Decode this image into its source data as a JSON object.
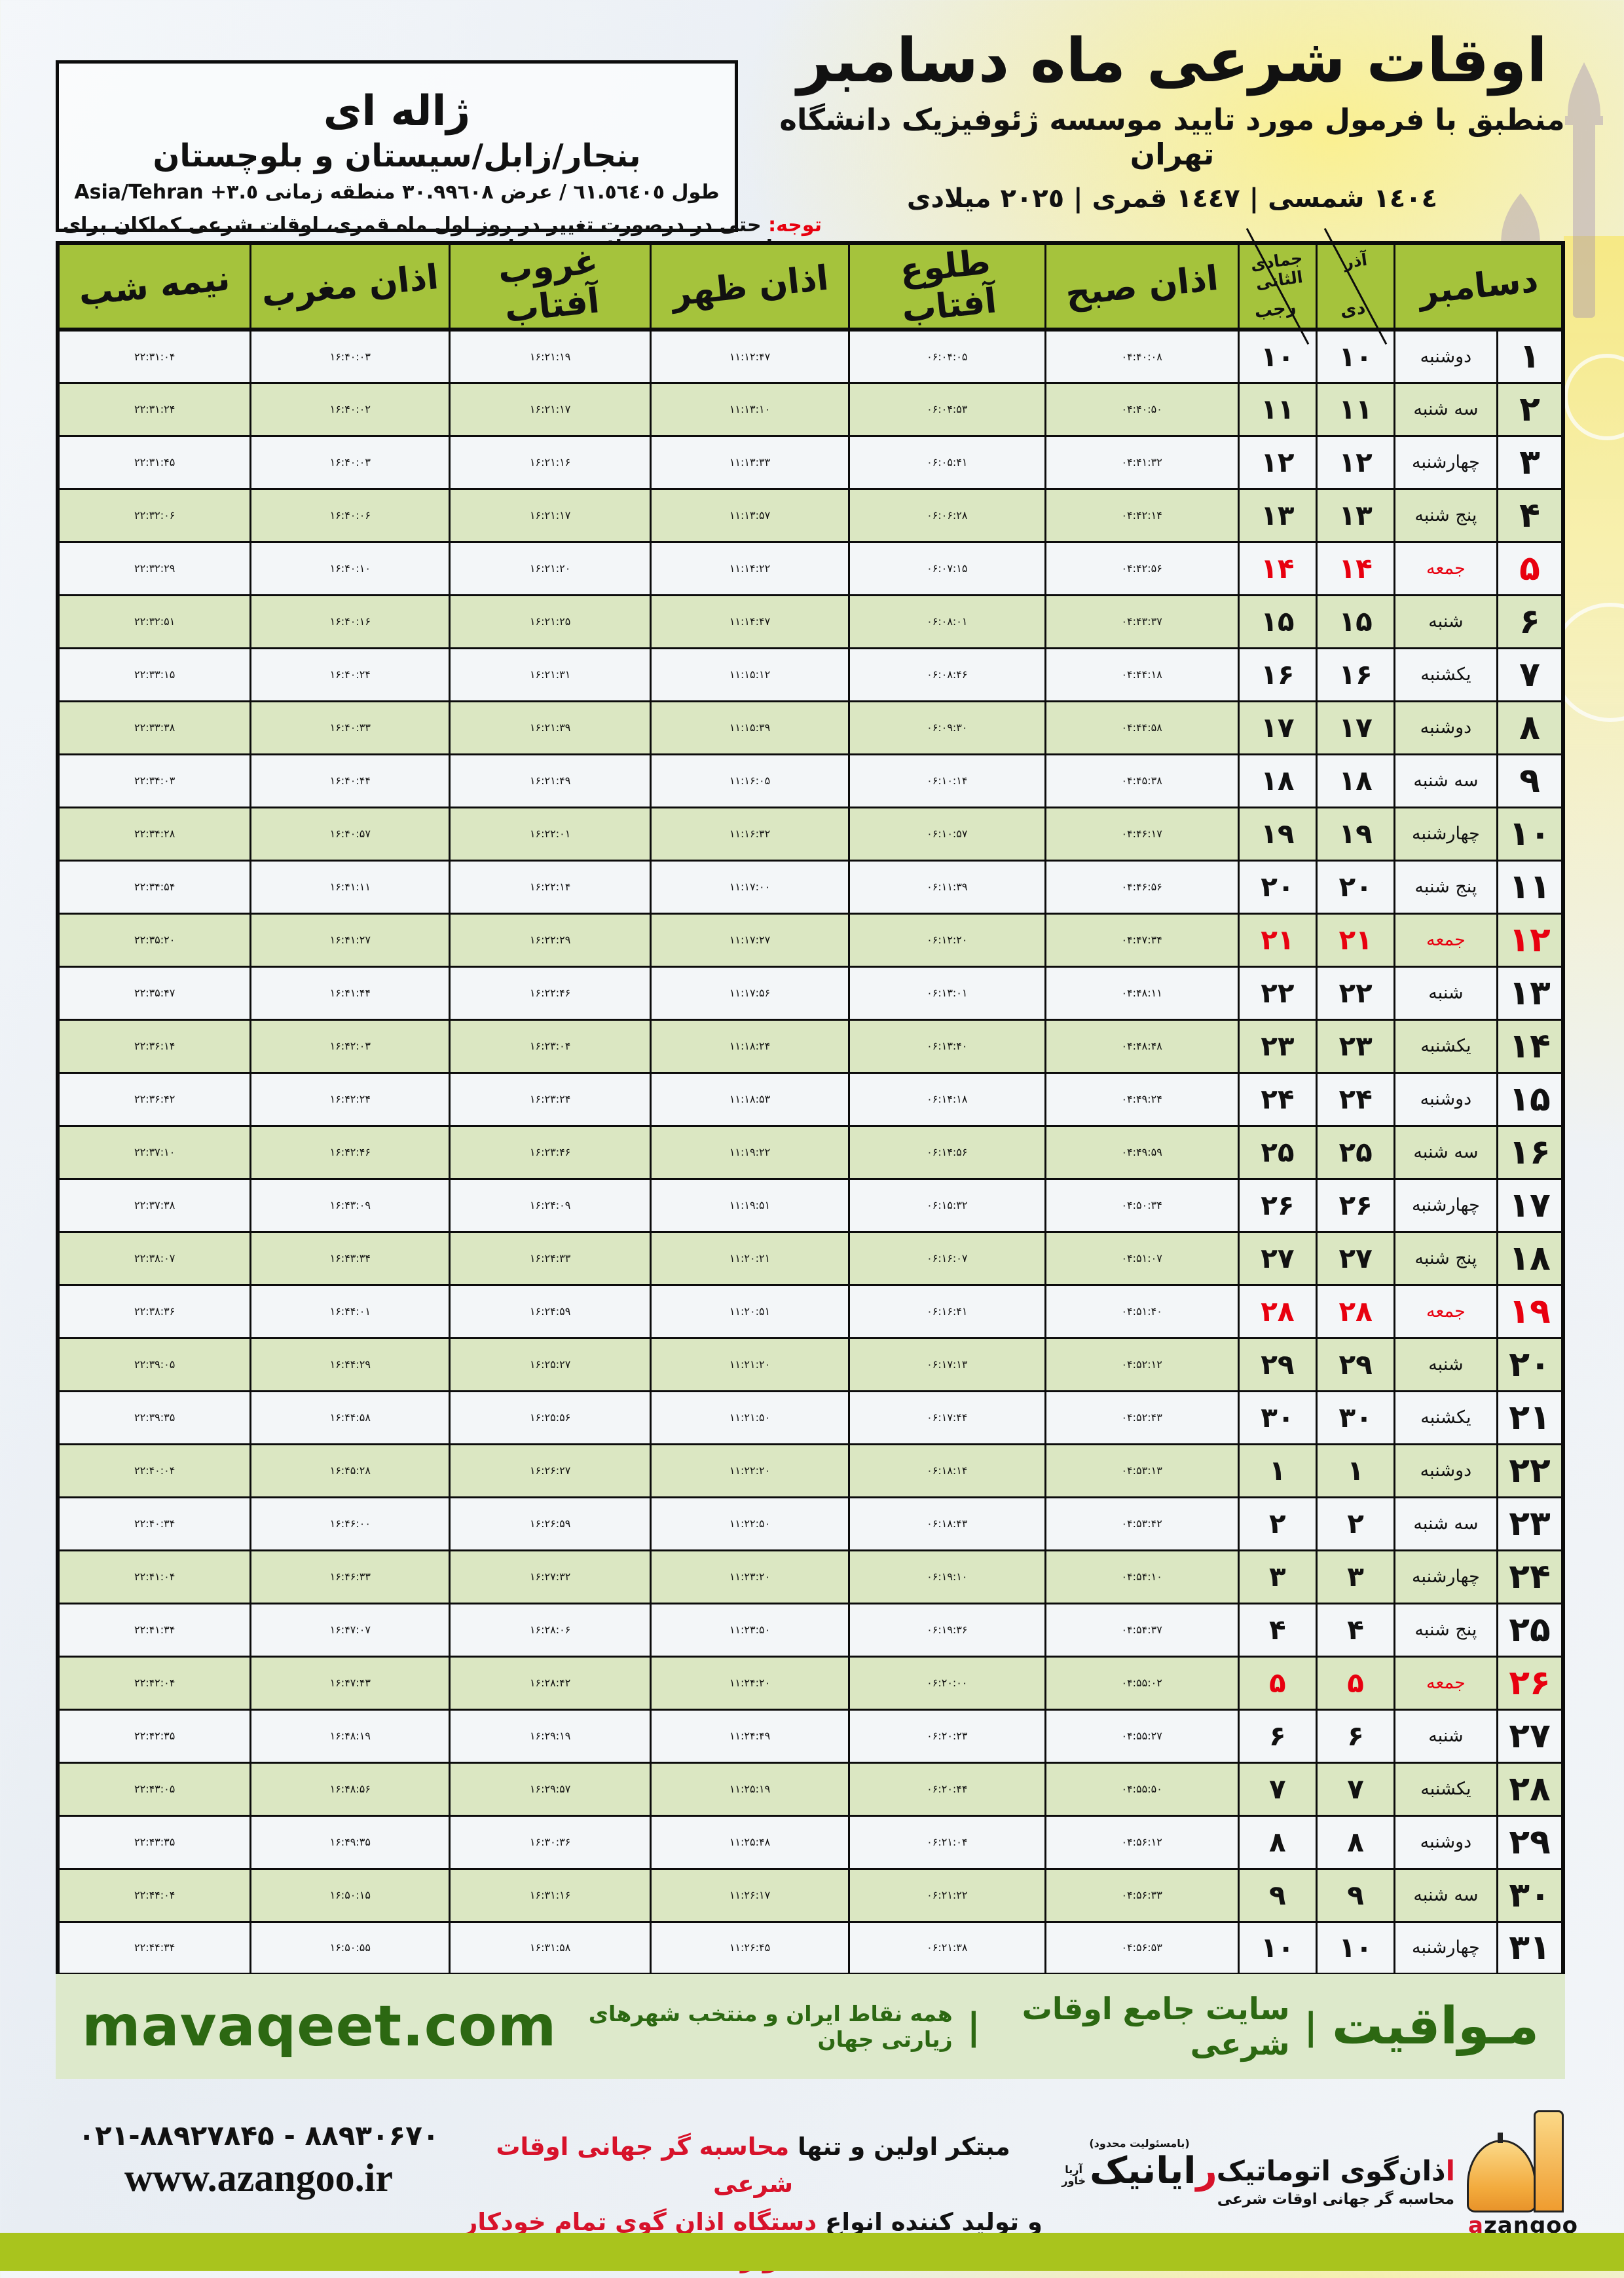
{
  "colors": {
    "header_green": "#a5c33c",
    "row_green": "#dbe7c2",
    "row_white": "#f3f6f8",
    "friday_red": "#e8000f",
    "brand_green": "#2c6812",
    "bottom_bar_green": "#a9c41d",
    "logo_orange": "#f2a93b"
  },
  "title": {
    "main": "اوقات شرعی ماه دسامبر",
    "sub": "منطبق با فرمول مورد تایید موسسه ژئوفیزیک دانشگاه تهران",
    "dates": "١٤٠٤ شمسی | ١٤٤٧ قمری | ٢٠٢٥ میلادی"
  },
  "location": {
    "name": "ژاله ای",
    "region": "بنجار/زابل/سیستان و بلوچستان",
    "coords": "طول ٦١.٥٦٤٠٥ / عرض ٣٠.٩٩٦٠٨ منطقه زمانی",
    "timezone": "Asia/Tehran +٣.٥"
  },
  "note": {
    "label": "توجه:",
    "text": " حتی در درصورت تغییر در روز اول ماه قمری، اوقات شرعی کماکان برای روزهای شمسی و میلادی معتبر است."
  },
  "table": {
    "headers": {
      "december": "دسامبر",
      "solar_top": "آذر",
      "solar_bottom": "دی",
      "lunar_top": "جمادی الثانی",
      "lunar_bottom": "رجب",
      "sobh": "اذان صبح",
      "tolu": "طلوع آفتاب",
      "zohr": "اذان ظهر",
      "ghorub": "غروب آفتاب",
      "maghreb": "اذان مغرب",
      "nimeshab": "نیمه شب"
    },
    "column_keys": [
      "dec",
      "weekday",
      "solar",
      "lunar",
      "sobh",
      "tolu",
      "zohr",
      "ghorub",
      "maghreb",
      "nimeshab"
    ],
    "rows": [
      {
        "dec": "۱",
        "weekday": "دوشنبه",
        "solar": "۱۰",
        "lunar": "۱۰",
        "sobh": "۰۴:۴۰:۰۸",
        "tolu": "۰۶:۰۴:۰۵",
        "zohr": "۱۱:۱۲:۴۷",
        "ghorub": "۱۶:۲۱:۱۹",
        "maghreb": "۱۶:۴۰:۰۳",
        "nimeshab": "۲۲:۳۱:۰۴",
        "friday": false
      },
      {
        "dec": "۲",
        "weekday": "سه شنبه",
        "solar": "۱۱",
        "lunar": "۱۱",
        "sobh": "۰۴:۴۰:۵۰",
        "tolu": "۰۶:۰۴:۵۳",
        "zohr": "۱۱:۱۳:۱۰",
        "ghorub": "۱۶:۲۱:۱۷",
        "maghreb": "۱۶:۴۰:۰۲",
        "nimeshab": "۲۲:۳۱:۲۴",
        "friday": false
      },
      {
        "dec": "۳",
        "weekday": "چهارشنبه",
        "solar": "۱۲",
        "lunar": "۱۲",
        "sobh": "۰۴:۴۱:۳۲",
        "tolu": "۰۶:۰۵:۴۱",
        "zohr": "۱۱:۱۳:۳۳",
        "ghorub": "۱۶:۲۱:۱۶",
        "maghreb": "۱۶:۴۰:۰۳",
        "nimeshab": "۲۲:۳۱:۴۵",
        "friday": false
      },
      {
        "dec": "۴",
        "weekday": "پنج شنبه",
        "solar": "۱۳",
        "lunar": "۱۳",
        "sobh": "۰۴:۴۲:۱۴",
        "tolu": "۰۶:۰۶:۲۸",
        "zohr": "۱۱:۱۳:۵۷",
        "ghorub": "۱۶:۲۱:۱۷",
        "maghreb": "۱۶:۴۰:۰۶",
        "nimeshab": "۲۲:۳۲:۰۶",
        "friday": false
      },
      {
        "dec": "۵",
        "weekday": "جمعه",
        "solar": "۱۴",
        "lunar": "۱۴",
        "sobh": "۰۴:۴۲:۵۶",
        "tolu": "۰۶:۰۷:۱۵",
        "zohr": "۱۱:۱۴:۲۲",
        "ghorub": "۱۶:۲۱:۲۰",
        "maghreb": "۱۶:۴۰:۱۰",
        "nimeshab": "۲۲:۳۲:۲۹",
        "friday": true
      },
      {
        "dec": "۶",
        "weekday": "شنبه",
        "solar": "۱۵",
        "lunar": "۱۵",
        "sobh": "۰۴:۴۳:۳۷",
        "tolu": "۰۶:۰۸:۰۱",
        "zohr": "۱۱:۱۴:۴۷",
        "ghorub": "۱۶:۲۱:۲۵",
        "maghreb": "۱۶:۴۰:۱۶",
        "nimeshab": "۲۲:۳۲:۵۱",
        "friday": false
      },
      {
        "dec": "۷",
        "weekday": "یکشنبه",
        "solar": "۱۶",
        "lunar": "۱۶",
        "sobh": "۰۴:۴۴:۱۸",
        "tolu": "۰۶:۰۸:۴۶",
        "zohr": "۱۱:۱۵:۱۲",
        "ghorub": "۱۶:۲۱:۳۱",
        "maghreb": "۱۶:۴۰:۲۴",
        "nimeshab": "۲۲:۳۳:۱۵",
        "friday": false
      },
      {
        "dec": "۸",
        "weekday": "دوشنبه",
        "solar": "۱۷",
        "lunar": "۱۷",
        "sobh": "۰۴:۴۴:۵۸",
        "tolu": "۰۶:۰۹:۳۰",
        "zohr": "۱۱:۱۵:۳۹",
        "ghorub": "۱۶:۲۱:۳۹",
        "maghreb": "۱۶:۴۰:۳۳",
        "nimeshab": "۲۲:۳۳:۳۸",
        "friday": false
      },
      {
        "dec": "۹",
        "weekday": "سه شنبه",
        "solar": "۱۸",
        "lunar": "۱۸",
        "sobh": "۰۴:۴۵:۳۸",
        "tolu": "۰۶:۱۰:۱۴",
        "zohr": "۱۱:۱۶:۰۵",
        "ghorub": "۱۶:۲۱:۴۹",
        "maghreb": "۱۶:۴۰:۴۴",
        "nimeshab": "۲۲:۳۴:۰۳",
        "friday": false
      },
      {
        "dec": "۱۰",
        "weekday": "چهارشنبه",
        "solar": "۱۹",
        "lunar": "۱۹",
        "sobh": "۰۴:۴۶:۱۷",
        "tolu": "۰۶:۱۰:۵۷",
        "zohr": "۱۱:۱۶:۳۲",
        "ghorub": "۱۶:۲۲:۰۱",
        "maghreb": "۱۶:۴۰:۵۷",
        "nimeshab": "۲۲:۳۴:۲۸",
        "friday": false
      },
      {
        "dec": "۱۱",
        "weekday": "پنج شنبه",
        "solar": "۲۰",
        "lunar": "۲۰",
        "sobh": "۰۴:۴۶:۵۶",
        "tolu": "۰۶:۱۱:۳۹",
        "zohr": "۱۱:۱۷:۰۰",
        "ghorub": "۱۶:۲۲:۱۴",
        "maghreb": "۱۶:۴۱:۱۱",
        "nimeshab": "۲۲:۳۴:۵۴",
        "friday": false
      },
      {
        "dec": "۱۲",
        "weekday": "جمعه",
        "solar": "۲۱",
        "lunar": "۲۱",
        "sobh": "۰۴:۴۷:۳۴",
        "tolu": "۰۶:۱۲:۲۰",
        "zohr": "۱۱:۱۷:۲۷",
        "ghorub": "۱۶:۲۲:۲۹",
        "maghreb": "۱۶:۴۱:۲۷",
        "nimeshab": "۲۲:۳۵:۲۰",
        "friday": true
      },
      {
        "dec": "۱۳",
        "weekday": "شنبه",
        "solar": "۲۲",
        "lunar": "۲۲",
        "sobh": "۰۴:۴۸:۱۱",
        "tolu": "۰۶:۱۳:۰۱",
        "zohr": "۱۱:۱۷:۵۶",
        "ghorub": "۱۶:۲۲:۴۶",
        "maghreb": "۱۶:۴۱:۴۴",
        "nimeshab": "۲۲:۳۵:۴۷",
        "friday": false
      },
      {
        "dec": "۱۴",
        "weekday": "یکشنبه",
        "solar": "۲۳",
        "lunar": "۲۳",
        "sobh": "۰۴:۴۸:۴۸",
        "tolu": "۰۶:۱۳:۴۰",
        "zohr": "۱۱:۱۸:۲۴",
        "ghorub": "۱۶:۲۳:۰۴",
        "maghreb": "۱۶:۴۲:۰۳",
        "nimeshab": "۲۲:۳۶:۱۴",
        "friday": false
      },
      {
        "dec": "۱۵",
        "weekday": "دوشنبه",
        "solar": "۲۴",
        "lunar": "۲۴",
        "sobh": "۰۴:۴۹:۲۴",
        "tolu": "۰۶:۱۴:۱۸",
        "zohr": "۱۱:۱۸:۵۳",
        "ghorub": "۱۶:۲۳:۲۴",
        "maghreb": "۱۶:۴۲:۲۴",
        "nimeshab": "۲۲:۳۶:۴۲",
        "friday": false
      },
      {
        "dec": "۱۶",
        "weekday": "سه شنبه",
        "solar": "۲۵",
        "lunar": "۲۵",
        "sobh": "۰۴:۴۹:۵۹",
        "tolu": "۰۶:۱۴:۵۶",
        "zohr": "۱۱:۱۹:۲۲",
        "ghorub": "۱۶:۲۳:۴۶",
        "maghreb": "۱۶:۴۲:۴۶",
        "nimeshab": "۲۲:۳۷:۱۰",
        "friday": false
      },
      {
        "dec": "۱۷",
        "weekday": "چهارشنبه",
        "solar": "۲۶",
        "lunar": "۲۶",
        "sobh": "۰۴:۵۰:۳۴",
        "tolu": "۰۶:۱۵:۳۲",
        "zohr": "۱۱:۱۹:۵۱",
        "ghorub": "۱۶:۲۴:۰۹",
        "maghreb": "۱۶:۴۳:۰۹",
        "nimeshab": "۲۲:۳۷:۳۸",
        "friday": false
      },
      {
        "dec": "۱۸",
        "weekday": "پنج شنبه",
        "solar": "۲۷",
        "lunar": "۲۷",
        "sobh": "۰۴:۵۱:۰۷",
        "tolu": "۰۶:۱۶:۰۷",
        "zohr": "۱۱:۲۰:۲۱",
        "ghorub": "۱۶:۲۴:۳۳",
        "maghreb": "۱۶:۴۳:۳۴",
        "nimeshab": "۲۲:۳۸:۰۷",
        "friday": false
      },
      {
        "dec": "۱۹",
        "weekday": "جمعه",
        "solar": "۲۸",
        "lunar": "۲۸",
        "sobh": "۰۴:۵۱:۴۰",
        "tolu": "۰۶:۱۶:۴۱",
        "zohr": "۱۱:۲۰:۵۱",
        "ghorub": "۱۶:۲۴:۵۹",
        "maghreb": "۱۶:۴۴:۰۱",
        "nimeshab": "۲۲:۳۸:۳۶",
        "friday": true
      },
      {
        "dec": "۲۰",
        "weekday": "شنبه",
        "solar": "۲۹",
        "lunar": "۲۹",
        "sobh": "۰۴:۵۲:۱۲",
        "tolu": "۰۶:۱۷:۱۳",
        "zohr": "۱۱:۲۱:۲۰",
        "ghorub": "۱۶:۲۵:۲۷",
        "maghreb": "۱۶:۴۴:۲۹",
        "nimeshab": "۲۲:۳۹:۰۵",
        "friday": false
      },
      {
        "dec": "۲۱",
        "weekday": "یکشنبه",
        "solar": "۳۰",
        "lunar": "۳۰",
        "sobh": "۰۴:۵۲:۴۳",
        "tolu": "۰۶:۱۷:۴۴",
        "zohr": "۱۱:۲۱:۵۰",
        "ghorub": "۱۶:۲۵:۵۶",
        "maghreb": "۱۶:۴۴:۵۸",
        "nimeshab": "۲۲:۳۹:۳۵",
        "friday": false
      },
      {
        "dec": "۲۲",
        "weekday": "دوشنبه",
        "solar": "۱",
        "lunar": "۱",
        "sobh": "۰۴:۵۳:۱۳",
        "tolu": "۰۶:۱۸:۱۴",
        "zohr": "۱۱:۲۲:۲۰",
        "ghorub": "۱۶:۲۶:۲۷",
        "maghreb": "۱۶:۴۵:۲۸",
        "nimeshab": "۲۲:۴۰:۰۴",
        "friday": false
      },
      {
        "dec": "۲۳",
        "weekday": "سه شنبه",
        "solar": "۲",
        "lunar": "۲",
        "sobh": "۰۴:۵۳:۴۲",
        "tolu": "۰۶:۱۸:۴۳",
        "zohr": "۱۱:۲۲:۵۰",
        "ghorub": "۱۶:۲۶:۵۹",
        "maghreb": "۱۶:۴۶:۰۰",
        "nimeshab": "۲۲:۴۰:۳۴",
        "friday": false
      },
      {
        "dec": "۲۴",
        "weekday": "چهارشنبه",
        "solar": "۳",
        "lunar": "۳",
        "sobh": "۰۴:۵۴:۱۰",
        "tolu": "۰۶:۱۹:۱۰",
        "zohr": "۱۱:۲۳:۲۰",
        "ghorub": "۱۶:۲۷:۳۲",
        "maghreb": "۱۶:۴۶:۳۳",
        "nimeshab": "۲۲:۴۱:۰۴",
        "friday": false
      },
      {
        "dec": "۲۵",
        "weekday": "پنج شنبه",
        "solar": "۴",
        "lunar": "۴",
        "sobh": "۰۴:۵۴:۳۷",
        "tolu": "۰۶:۱۹:۳۶",
        "zohr": "۱۱:۲۳:۵۰",
        "ghorub": "۱۶:۲۸:۰۶",
        "maghreb": "۱۶:۴۷:۰۷",
        "nimeshab": "۲۲:۴۱:۳۴",
        "friday": false
      },
      {
        "dec": "۲۶",
        "weekday": "جمعه",
        "solar": "۵",
        "lunar": "۵",
        "sobh": "۰۴:۵۵:۰۲",
        "tolu": "۰۶:۲۰:۰۰",
        "zohr": "۱۱:۲۴:۲۰",
        "ghorub": "۱۶:۲۸:۴۲",
        "maghreb": "۱۶:۴۷:۴۳",
        "nimeshab": "۲۲:۴۲:۰۴",
        "friday": true
      },
      {
        "dec": "۲۷",
        "weekday": "شنبه",
        "solar": "۶",
        "lunar": "۶",
        "sobh": "۰۴:۵۵:۲۷",
        "tolu": "۰۶:۲۰:۲۳",
        "zohr": "۱۱:۲۴:۴۹",
        "ghorub": "۱۶:۲۹:۱۹",
        "maghreb": "۱۶:۴۸:۱۹",
        "nimeshab": "۲۲:۴۲:۳۵",
        "friday": false
      },
      {
        "dec": "۲۸",
        "weekday": "یکشنبه",
        "solar": "۷",
        "lunar": "۷",
        "sobh": "۰۴:۵۵:۵۰",
        "tolu": "۰۶:۲۰:۴۴",
        "zohr": "۱۱:۲۵:۱۹",
        "ghorub": "۱۶:۲۹:۵۷",
        "maghreb": "۱۶:۴۸:۵۶",
        "nimeshab": "۲۲:۴۳:۰۵",
        "friday": false
      },
      {
        "dec": "۲۹",
        "weekday": "دوشنبه",
        "solar": "۸",
        "lunar": "۸",
        "sobh": "۰۴:۵۶:۱۲",
        "tolu": "۰۶:۲۱:۰۴",
        "zohr": "۱۱:۲۵:۴۸",
        "ghorub": "۱۶:۳۰:۳۶",
        "maghreb": "۱۶:۴۹:۳۵",
        "nimeshab": "۲۲:۴۳:۳۵",
        "friday": false
      },
      {
        "dec": "۳۰",
        "weekday": "سه شنبه",
        "solar": "۹",
        "lunar": "۹",
        "sobh": "۰۴:۵۶:۳۳",
        "tolu": "۰۶:۲۱:۲۲",
        "zohr": "۱۱:۲۶:۱۷",
        "ghorub": "۱۶:۳۱:۱۶",
        "maghreb": "۱۶:۵۰:۱۵",
        "nimeshab": "۲۲:۴۴:۰۴",
        "friday": false
      },
      {
        "dec": "۳۱",
        "weekday": "چهارشنبه",
        "solar": "۱۰",
        "lunar": "۱۰",
        "sobh": "۰۴:۵۶:۵۳",
        "tolu": "۰۶:۲۱:۳۸",
        "zohr": "۱۱:۲۶:۴۵",
        "ghorub": "۱۶:۳۱:۵۸",
        "maghreb": "۱۶:۵۰:۵۵",
        "nimeshab": "۲۲:۴۴:۳۴",
        "friday": false
      }
    ]
  },
  "mavaqeet": {
    "brand": "مـواقیت",
    "sep": "|",
    "tagline1": "سایت جامع اوقات شرعی",
    "tagline2": "همه نقاط ایران و منتخب شهرهای زیارتی جهان",
    "url": "mavaqeet.com"
  },
  "footer": {
    "phone": "۰۲۱-۸۸۹۲۷۸۴۵ - ۸۸۹۳۰۶۷۰",
    "website": "www.azangoo.ir",
    "line1_black": "مبتکر اولین و تنها ",
    "line1_red": "محاسبه گر جهانی اوقات شرعی",
    "line2_black": "و تولید کننده انواع ",
    "line2_red": "دستگاه اذان گوی تمام خودکار ماهواره ای",
    "rayanik_note": "(بامسئولیت محدود)",
    "rayanik_initial": "ر",
    "rayanik_rest": "ایانیک",
    "rayanik_sub1": "آریا",
    "rayanik_sub2": "خاور",
    "azangoo_fa_initial": "ا",
    "azangoo_fa_rest": "ذان‌گوی اتوماتیک",
    "azangoo_sub": "محاسبه گر جهانی اوقات شرعی",
    "azangoo_en_initial": "a",
    "azangoo_en_rest": "zangoo"
  }
}
